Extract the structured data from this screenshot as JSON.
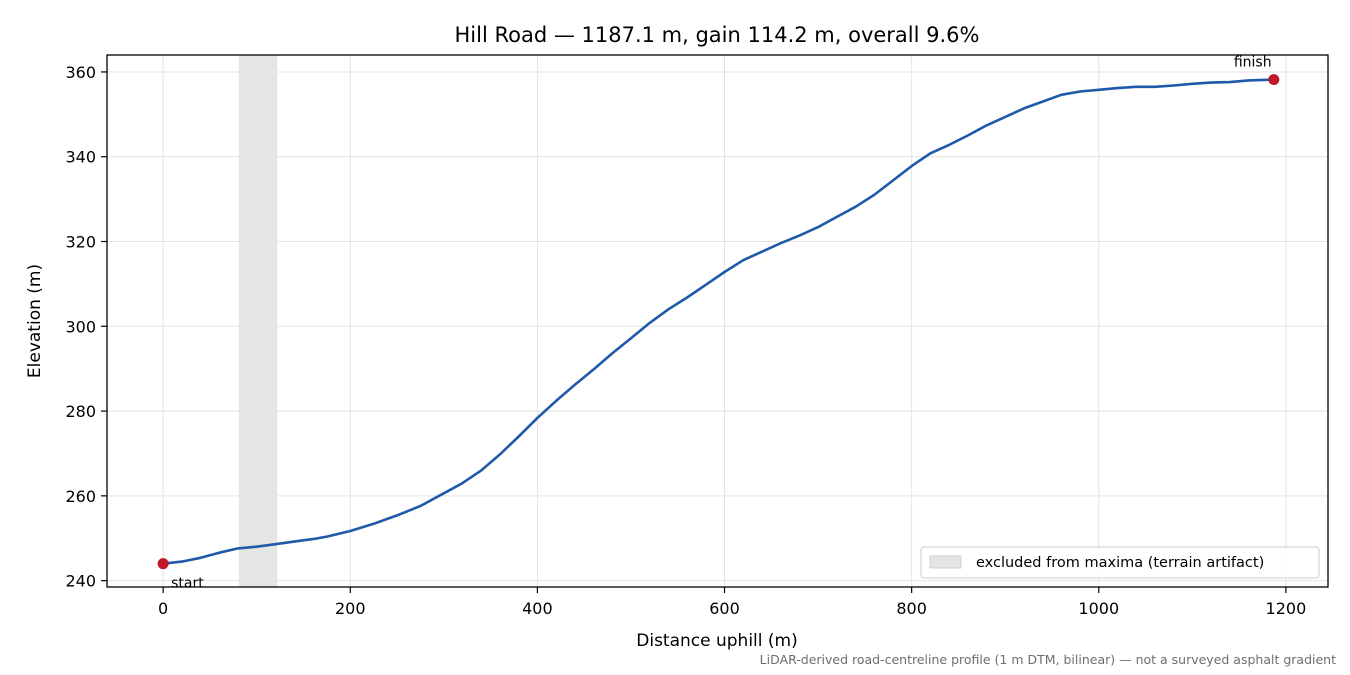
{
  "chart_data": {
    "type": "line",
    "title": "Hill Road — 1187.1 m, gain 114.2 m, overall 9.6%",
    "xlabel": "Distance uphill (m)",
    "ylabel": "Elevation (m)",
    "xlim": [
      -60,
      1245
    ],
    "ylim": [
      238.5,
      364
    ],
    "xticks": [
      0,
      200,
      400,
      600,
      800,
      1000,
      1200
    ],
    "yticks": [
      240,
      260,
      280,
      300,
      320,
      340,
      360
    ],
    "grid": true,
    "legend": {
      "placement": "lower right",
      "entries": [
        {
          "label": "excluded from maxima (terrain artifact)",
          "kind": "shaded-span"
        }
      ]
    },
    "excluded_span": {
      "x_start": 81,
      "x_end": 122
    },
    "series": [
      {
        "color": "#1f5aa8",
        "points": [
          [
            0,
            244.0
          ],
          [
            20,
            244.5
          ],
          [
            40,
            245.4
          ],
          [
            60,
            246.6
          ],
          [
            80,
            247.6
          ],
          [
            100,
            248.0
          ],
          [
            120,
            248.6
          ],
          [
            140,
            249.2
          ],
          [
            160,
            249.8
          ],
          [
            175,
            250.4
          ],
          [
            200,
            251.7
          ],
          [
            225,
            253.4
          ],
          [
            250,
            255.4
          ],
          [
            275,
            257.6
          ],
          [
            300,
            260.6
          ],
          [
            320,
            263.0
          ],
          [
            340,
            266.0
          ],
          [
            360,
            269.8
          ],
          [
            380,
            274.0
          ],
          [
            400,
            278.4
          ],
          [
            420,
            282.4
          ],
          [
            440,
            286.2
          ],
          [
            460,
            289.8
          ],
          [
            480,
            293.6
          ],
          [
            500,
            297.2
          ],
          [
            520,
            300.8
          ],
          [
            540,
            304.0
          ],
          [
            560,
            306.8
          ],
          [
            580,
            309.8
          ],
          [
            600,
            312.8
          ],
          [
            620,
            315.6
          ],
          [
            640,
            317.6
          ],
          [
            660,
            319.6
          ],
          [
            680,
            321.4
          ],
          [
            700,
            323.4
          ],
          [
            720,
            325.8
          ],
          [
            740,
            328.2
          ],
          [
            760,
            331.0
          ],
          [
            780,
            334.4
          ],
          [
            800,
            337.8
          ],
          [
            820,
            340.8
          ],
          [
            840,
            342.8
          ],
          [
            860,
            345.0
          ],
          [
            880,
            347.4
          ],
          [
            900,
            349.4
          ],
          [
            920,
            351.4
          ],
          [
            940,
            353.0
          ],
          [
            960,
            354.6
          ],
          [
            980,
            355.4
          ],
          [
            1000,
            355.8
          ],
          [
            1020,
            356.2
          ],
          [
            1040,
            356.5
          ],
          [
            1060,
            356.5
          ],
          [
            1080,
            356.8
          ],
          [
            1100,
            357.2
          ],
          [
            1120,
            357.5
          ],
          [
            1140,
            357.6
          ],
          [
            1160,
            358.0
          ],
          [
            1187.1,
            358.2
          ]
        ]
      }
    ],
    "markers": [
      {
        "label": "start",
        "x": 0,
        "y": 244.0,
        "color": "#c0182a"
      },
      {
        "label": "finish",
        "x": 1187.1,
        "y": 358.2,
        "color": "#c0182a"
      }
    ],
    "colors": {
      "span": "#e5e5e5",
      "grid": "#e3e3e3"
    },
    "footnote": "LiDAR-derived road-centreline profile (1 m DTM, bilinear) — not a surveyed asphalt gradient"
  }
}
